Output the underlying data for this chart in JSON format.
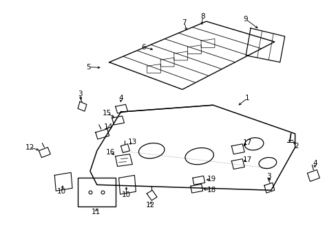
{
  "bg_color": "#ffffff",
  "line_color": "#000000",
  "fig_width": 4.89,
  "fig_height": 3.6,
  "dpi": 100,
  "label_fs": 7.5
}
